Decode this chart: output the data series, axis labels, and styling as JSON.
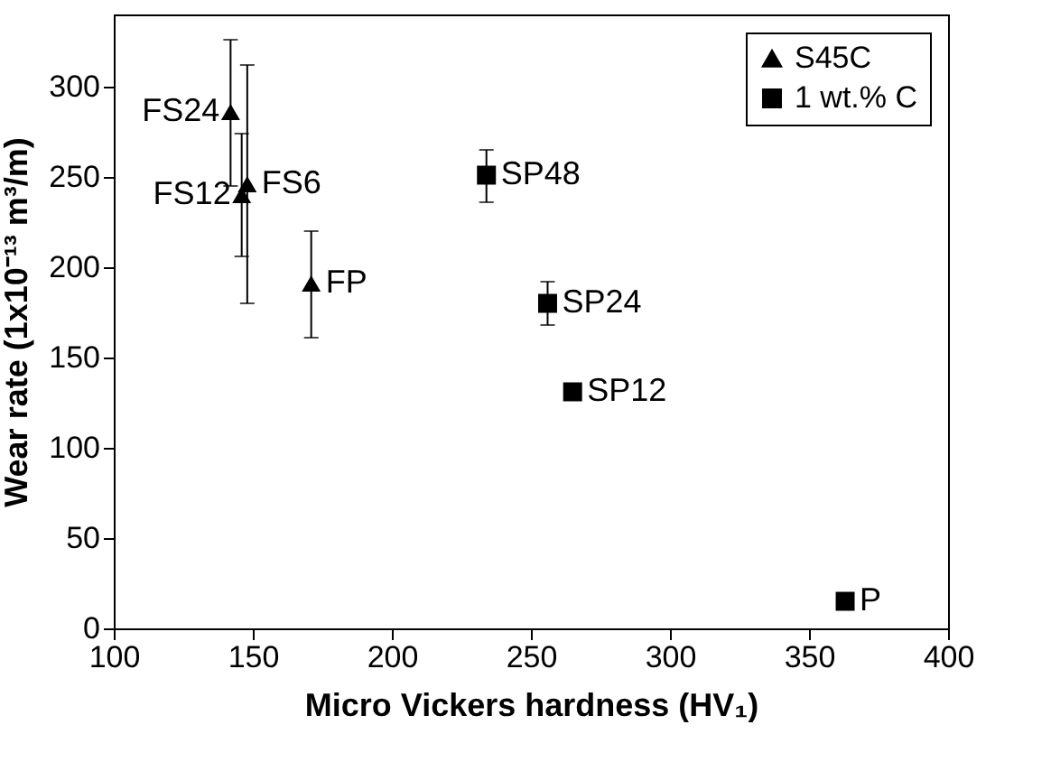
{
  "chart_data": {
    "type": "scatter",
    "xlabel": "Micro Vickers hardness (HV₁)",
    "ylabel": "Wear rate (1x10⁻¹³ m³/m)",
    "xlim": [
      100,
      400
    ],
    "xticks": [
      100,
      150,
      200,
      250,
      300,
      350,
      400
    ],
    "ylim": [
      0,
      340
    ],
    "yticks": [
      0,
      50,
      100,
      150,
      200,
      250,
      300
    ],
    "grid": false,
    "legend": "top right",
    "series": [
      {
        "name": "S45C",
        "color": "#000000",
        "marker": "triangle",
        "x": [
          142,
          146,
          148,
          171
        ],
        "values": [
          286,
          240,
          246,
          191
        ],
        "errors": [
          [
            245,
            326
          ],
          [
            206,
            274
          ],
          [
            180,
            312
          ],
          [
            161,
            220
          ]
        ]
      },
      {
        "name": "1 wt.% C",
        "color": "#000000",
        "marker": "square",
        "x": [
          234,
          256,
          265,
          363
        ],
        "values": [
          251,
          180,
          131,
          15
        ],
        "errors": [
          [
            236,
            265
          ],
          [
            168,
            192
          ],
          null,
          null
        ]
      }
    ],
    "annotations": [
      {
        "text": "FS24",
        "x": 142,
        "y": 286
      },
      {
        "text": "FS12",
        "x": 146,
        "y": 240
      },
      {
        "text": "FS6",
        "x": 148,
        "y": 246
      },
      {
        "text": "FP",
        "x": 171,
        "y": 191
      },
      {
        "text": "SP48",
        "x": 234,
        "y": 251
      },
      {
        "text": "SP24",
        "x": 256,
        "y": 180
      },
      {
        "text": "SP12",
        "x": 265,
        "y": 131
      },
      {
        "text": "P",
        "x": 363,
        "y": 15
      }
    ]
  }
}
